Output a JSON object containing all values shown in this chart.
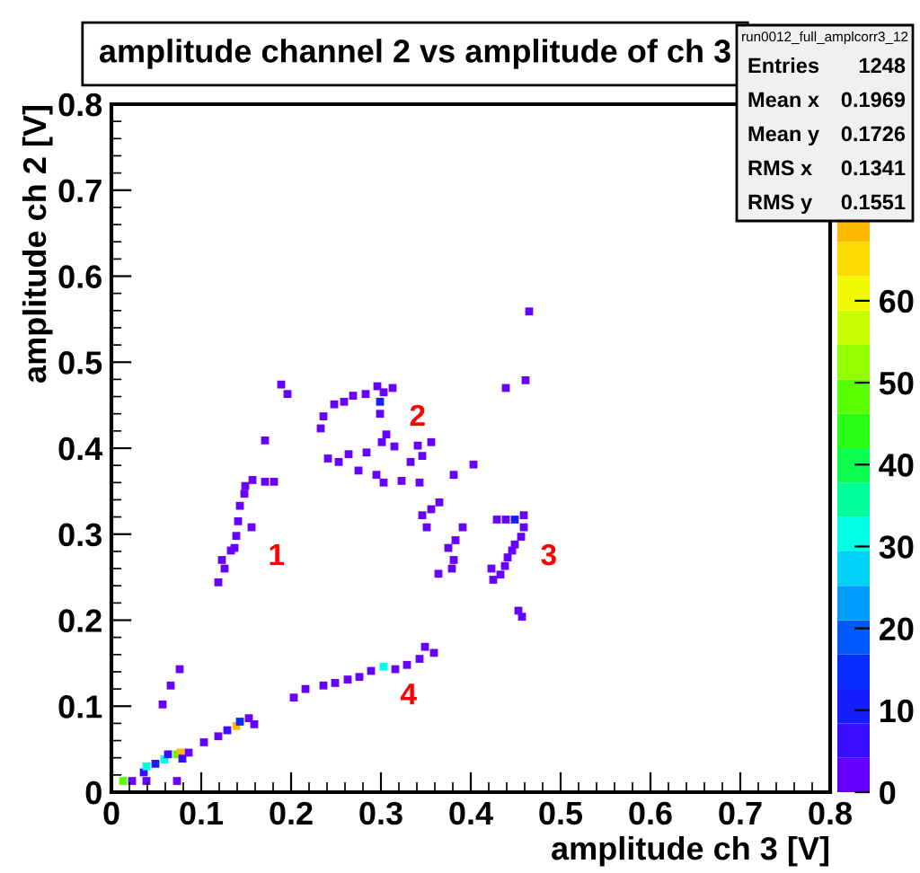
{
  "chart_data": {
    "type": "scatter",
    "title": "amplitude channel 2 vs amplitude of ch 3",
    "xlabel": "amplitude ch 3 [V]",
    "ylabel": "amplitude ch 2 [V]",
    "xlim": [
      0,
      0.8
    ],
    "ylim": [
      0,
      0.8
    ],
    "xticks": [
      0,
      0.1,
      0.2,
      0.3,
      0.4,
      0.5,
      0.6,
      0.7,
      0.8
    ],
    "yticks": [
      0,
      0.1,
      0.2,
      0.3,
      0.4,
      0.5,
      0.6,
      0.7,
      0.8
    ],
    "clim": [
      0,
      84
    ],
    "cticks": [
      0,
      10,
      20,
      30,
      40,
      50,
      60
    ],
    "marker": "square",
    "grid": false,
    "series": [
      {
        "x": [
          0.013,
          0.023,
          0.039,
          0.073,
          0.036,
          0.039,
          0.049,
          0.059,
          0.063,
          0.073,
          0.077,
          0.079,
          0.086,
          0.103,
          0.119,
          0.129,
          0.139,
          0.143,
          0.153,
          0.159,
          0.057,
          0.066,
          0.076,
          0.203,
          0.216,
          0.236,
          0.249,
          0.263,
          0.276,
          0.289,
          0.303,
          0.316,
          0.329,
          0.343,
          0.359,
          0.349,
          0.119,
          0.126,
          0.123,
          0.133,
          0.137,
          0.139,
          0.141,
          0.156,
          0.143,
          0.148,
          0.149,
          0.157,
          0.171,
          0.181,
          0.171,
          0.189,
          0.196,
          0.233,
          0.236,
          0.248,
          0.259,
          0.269,
          0.283,
          0.296,
          0.303,
          0.313,
          0.299,
          0.299,
          0.241,
          0.253,
          0.264,
          0.275,
          0.284,
          0.295,
          0.303,
          0.306,
          0.301,
          0.315,
          0.323,
          0.333,
          0.341,
          0.343,
          0.346,
          0.356,
          0.381,
          0.403,
          0.346,
          0.356,
          0.365,
          0.351,
          0.383,
          0.391,
          0.375,
          0.381,
          0.364,
          0.379,
          0.423,
          0.425,
          0.433,
          0.438,
          0.441,
          0.446,
          0.449,
          0.456,
          0.429,
          0.439,
          0.449,
          0.459,
          0.459,
          0.453,
          0.457,
          0.439,
          0.461,
          0.465
        ],
        "values": [
          0.013,
          0.013,
          0.013,
          0.013,
          0.023,
          0.03,
          0.033,
          0.038,
          0.044,
          0.044,
          0.046,
          0.039,
          0.046,
          0.058,
          0.065,
          0.072,
          0.077,
          0.082,
          0.086,
          0.079,
          0.102,
          0.124,
          0.143,
          0.11,
          0.12,
          0.124,
          0.127,
          0.131,
          0.134,
          0.141,
          0.146,
          0.143,
          0.148,
          0.155,
          0.162,
          0.169,
          0.244,
          0.26,
          0.27,
          0.281,
          0.284,
          0.298,
          0.315,
          0.308,
          0.333,
          0.347,
          0.356,
          0.363,
          0.361,
          0.361,
          0.409,
          0.474,
          0.463,
          0.423,
          0.437,
          0.451,
          0.454,
          0.461,
          0.463,
          0.472,
          0.465,
          0.47,
          0.454,
          0.44,
          0.388,
          0.384,
          0.393,
          0.374,
          0.395,
          0.369,
          0.36,
          0.416,
          0.407,
          0.402,
          0.362,
          0.384,
          0.403,
          0.36,
          0.391,
          0.407,
          0.369,
          0.381,
          0.322,
          0.329,
          0.337,
          0.308,
          0.293,
          0.308,
          0.284,
          0.27,
          0.254,
          0.26,
          0.26,
          0.247,
          0.253,
          0.263,
          0.273,
          0.281,
          0.288,
          0.297,
          0.317,
          0.317,
          0.317,
          0.322,
          0.308,
          0.211,
          0.204,
          0.47,
          0.479,
          0.559
        ],
        "cvalues": [
          50,
          2,
          2,
          2,
          8,
          30,
          12,
          30,
          8,
          50,
          70,
          8,
          4,
          2,
          4,
          8,
          70,
          14,
          4,
          2,
          2,
          2,
          2,
          2,
          2,
          4,
          2,
          4,
          4,
          4,
          30,
          4,
          2,
          2,
          2,
          2,
          2,
          2,
          2,
          2,
          2,
          2,
          2,
          2,
          2,
          2,
          2,
          2,
          2,
          2,
          2,
          2,
          2,
          2,
          2,
          2,
          4,
          2,
          2,
          2,
          2,
          2,
          10,
          4,
          2,
          2,
          2,
          2,
          2,
          2,
          2,
          2,
          2,
          2,
          2,
          2,
          2,
          2,
          2,
          2,
          2,
          2,
          2,
          2,
          2,
          2,
          2,
          2,
          2,
          2,
          2,
          2,
          2,
          2,
          2,
          2,
          2,
          2,
          2,
          4,
          2,
          4,
          10,
          4,
          2,
          2,
          2,
          2,
          2,
          2
        ]
      }
    ],
    "annotations": [
      {
        "text": "1",
        "x": 0.156,
        "y": 0.308
      },
      {
        "text": "2",
        "x": 0.313,
        "y": 0.47
      },
      {
        "text": "3",
        "x": 0.459,
        "y": 0.308
      },
      {
        "text": "4",
        "x": 0.303,
        "y": 0.146
      },
      "run0012_full_amplcorr3_12",
      "Entries 1248",
      "Mean x 0.1969",
      "Mean y 0.1726",
      "RMS x 0.1341",
      "RMS y 0.1551"
    ]
  }
}
